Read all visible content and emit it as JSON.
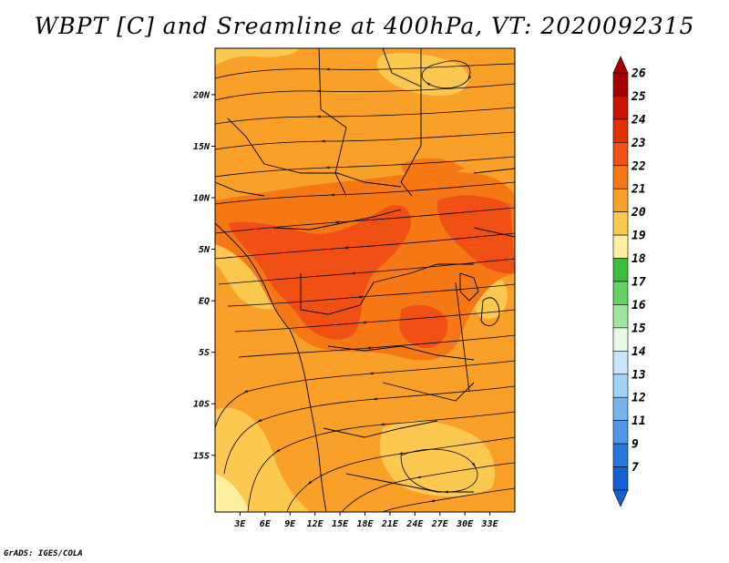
{
  "title": "WBPT [C] and Sreamline at 400hPa, VT: 2020092315",
  "credit": "GrADS: IGES/COLA",
  "map": {
    "x_range_deg": [
      0,
      36
    ],
    "y_range_deg": [
      -20.5,
      24.5
    ],
    "lat_ticks": [
      {
        "label": "20N",
        "value": 20
      },
      {
        "label": "15N",
        "value": 15
      },
      {
        "label": "10N",
        "value": 10
      },
      {
        "label": "5N",
        "value": 5
      },
      {
        "label": "EQ",
        "value": 0
      },
      {
        "label": "5S",
        "value": -5
      },
      {
        "label": "10S",
        "value": -10
      },
      {
        "label": "15S",
        "value": -15
      }
    ],
    "lon_ticks": [
      {
        "label": "3E",
        "value": 3
      },
      {
        "label": "6E",
        "value": 6
      },
      {
        "label": "9E",
        "value": 9
      },
      {
        "label": "12E",
        "value": 12
      },
      {
        "label": "15E",
        "value": 15
      },
      {
        "label": "18E",
        "value": 18
      },
      {
        "label": "21E",
        "value": 21
      },
      {
        "label": "24E",
        "value": 24
      },
      {
        "label": "27E",
        "value": 27
      },
      {
        "label": "30E",
        "value": 30
      },
      {
        "label": "33E",
        "value": 33
      }
    ]
  },
  "colorbar": {
    "labels": [
      "26",
      "25",
      "24",
      "23",
      "22",
      "21",
      "20",
      "19",
      "18",
      "17",
      "16",
      "15",
      "14",
      "13",
      "12",
      "11",
      "9",
      "7"
    ],
    "colors": [
      "#a50000",
      "#c81400",
      "#e13200",
      "#f05014",
      "#f57814",
      "#f8a028",
      "#fbc850",
      "#fff0a0",
      "#3cbe3c",
      "#64d264",
      "#a0e6a0",
      "#e6fae6",
      "#c8e6fa",
      "#a0d2fa",
      "#78b4f0",
      "#5096e6",
      "#2878dc",
      "#1460d2"
    ]
  }
}
